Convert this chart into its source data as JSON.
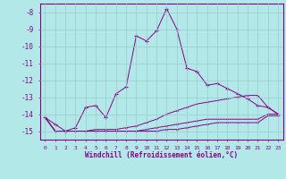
{
  "x": [
    0,
    1,
    2,
    3,
    4,
    5,
    6,
    7,
    8,
    9,
    10,
    11,
    12,
    13,
    14,
    15,
    16,
    17,
    18,
    19,
    20,
    21,
    22,
    23
  ],
  "line_main": [
    -14.2,
    -14.6,
    -15.0,
    -14.8,
    -13.6,
    -13.5,
    -14.2,
    -12.8,
    -12.4,
    -9.4,
    -9.7,
    -9.1,
    -7.8,
    -9.0,
    -11.3,
    -11.5,
    -12.3,
    -12.2,
    -12.5,
    -12.8,
    -13.1,
    -13.5,
    -13.6,
    -14.0
  ],
  "line_slow1": [
    -14.2,
    -15.0,
    -15.0,
    -15.0,
    -15.0,
    -14.9,
    -14.9,
    -14.9,
    -14.8,
    -14.7,
    -14.5,
    -14.3,
    -14.0,
    -13.8,
    -13.6,
    -13.4,
    -13.3,
    -13.2,
    -13.1,
    -13.0,
    -12.9,
    -12.9,
    -13.6,
    -14.0
  ],
  "line_slow2": [
    -14.2,
    -15.0,
    -15.0,
    -15.0,
    -15.0,
    -15.0,
    -15.0,
    -15.0,
    -15.0,
    -15.0,
    -14.9,
    -14.8,
    -14.7,
    -14.6,
    -14.5,
    -14.4,
    -14.3,
    -14.3,
    -14.3,
    -14.3,
    -14.3,
    -14.3,
    -14.0,
    -14.0
  ],
  "line_slow3": [
    -14.2,
    -15.0,
    -15.0,
    -15.0,
    -15.0,
    -15.0,
    -15.0,
    -15.0,
    -15.0,
    -15.0,
    -15.0,
    -15.0,
    -14.9,
    -14.9,
    -14.8,
    -14.7,
    -14.6,
    -14.5,
    -14.5,
    -14.5,
    -14.5,
    -14.5,
    -14.1,
    -14.1
  ],
  "ylim": [
    -15.5,
    -7.5
  ],
  "xlim": [
    -0.5,
    23.5
  ],
  "yticks": [
    -15,
    -14,
    -13,
    -12,
    -11,
    -10,
    -9,
    -8
  ],
  "xticks": [
    0,
    1,
    2,
    3,
    4,
    5,
    6,
    7,
    8,
    9,
    10,
    11,
    12,
    13,
    14,
    15,
    16,
    17,
    18,
    19,
    20,
    21,
    22,
    23
  ],
  "xlabel": "Windchill (Refroidissement éolien,°C)",
  "line_color": "#880088",
  "bg_color": "#b3e8e8",
  "grid_color": "#99cccc"
}
